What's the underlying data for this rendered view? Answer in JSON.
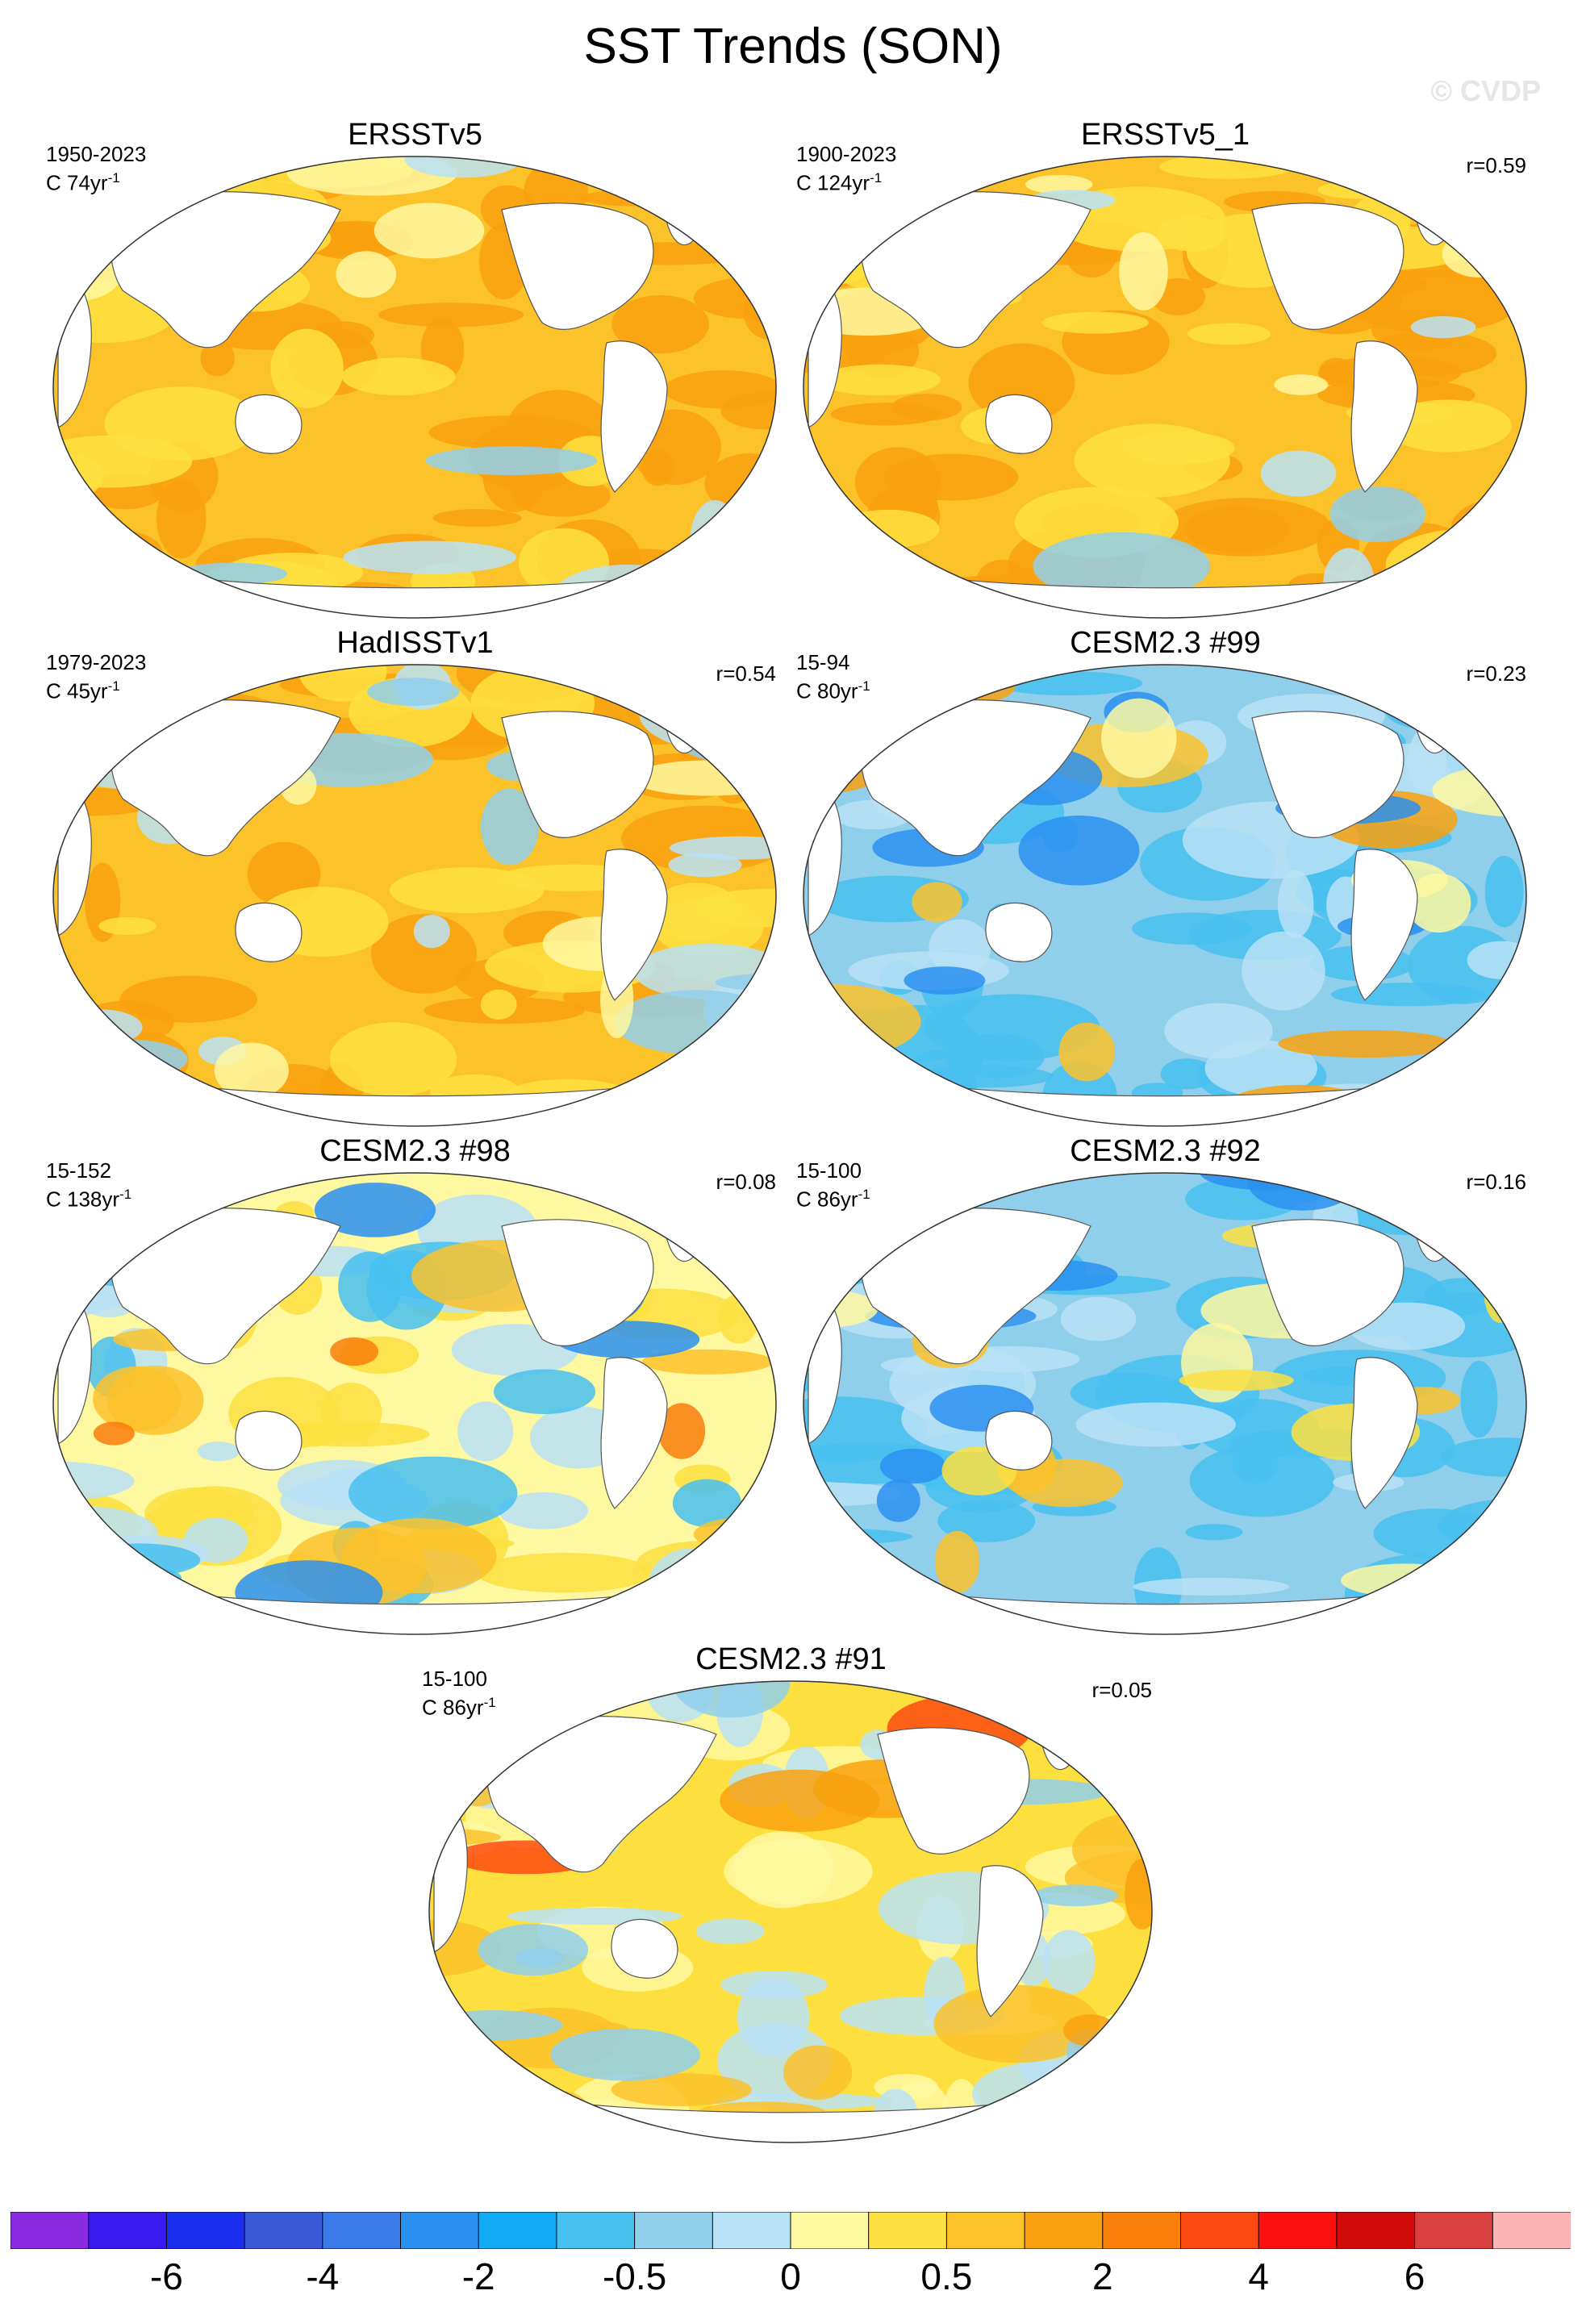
{
  "title": "SST Trends (SON)",
  "watermark": "© CVDP",
  "panels": [
    {
      "name": "ERSSTv5",
      "period": "1950-2023",
      "units_prefix": "C 74yr",
      "units_exp": "-1",
      "corr": "",
      "palette": "warm"
    },
    {
      "name": "ERSSTv5_1",
      "period": "1900-2023",
      "units_prefix": "C 124yr",
      "units_exp": "-1",
      "corr": "r=0.59",
      "palette": "warm"
    },
    {
      "name": "HadISSTv1",
      "period": "1979-2023",
      "units_prefix": "C 45yr",
      "units_exp": "-1",
      "corr": "r=0.54",
      "palette": "warm2"
    },
    {
      "name": "CESM2.3 #99",
      "period": "15-94",
      "units_prefix": "C 80yr",
      "units_exp": "-1",
      "corr": "r=0.23",
      "palette": "cool"
    },
    {
      "name": "CESM2.3 #98",
      "period": "15-152",
      "units_prefix": "C 138yr",
      "units_exp": "-1",
      "corr": "r=0.08",
      "palette": "mixed"
    },
    {
      "name": "CESM2.3 #92",
      "period": "15-100",
      "units_prefix": "C 86yr",
      "units_exp": "-1",
      "corr": "r=0.16",
      "palette": "cool2"
    },
    {
      "name": "CESM2.3 #91",
      "period": "15-100",
      "units_prefix": "C 86yr",
      "units_exp": "-1",
      "corr": "r=0.05",
      "palette": "mixed2"
    }
  ],
  "colorbar": {
    "colors": [
      "#8a2be2",
      "#3a18f0",
      "#1a2ef0",
      "#3a5ad8",
      "#3a7ae8",
      "#2a90f0",
      "#12aaf5",
      "#48c0f0",
      "#90cfec",
      "#b8e2f6",
      "#fef8a0",
      "#fde040",
      "#fcc22a",
      "#f9a10e",
      "#f97e0a",
      "#fd4a12",
      "#fd0f0f",
      "#d20a0a",
      "#d94040",
      "#fbb4b4"
    ],
    "labels": [
      {
        "text": "-6",
        "bin": 2
      },
      {
        "text": "-4",
        "bin": 4
      },
      {
        "text": "-2",
        "bin": 6
      },
      {
        "text": "-0.5",
        "bin": 8
      },
      {
        "text": "0",
        "bin": 10
      },
      {
        "text": "0.5",
        "bin": 12
      },
      {
        "text": "2",
        "bin": 14
      },
      {
        "text": "4",
        "bin": 16
      },
      {
        "text": "6",
        "bin": 18
      }
    ]
  }
}
